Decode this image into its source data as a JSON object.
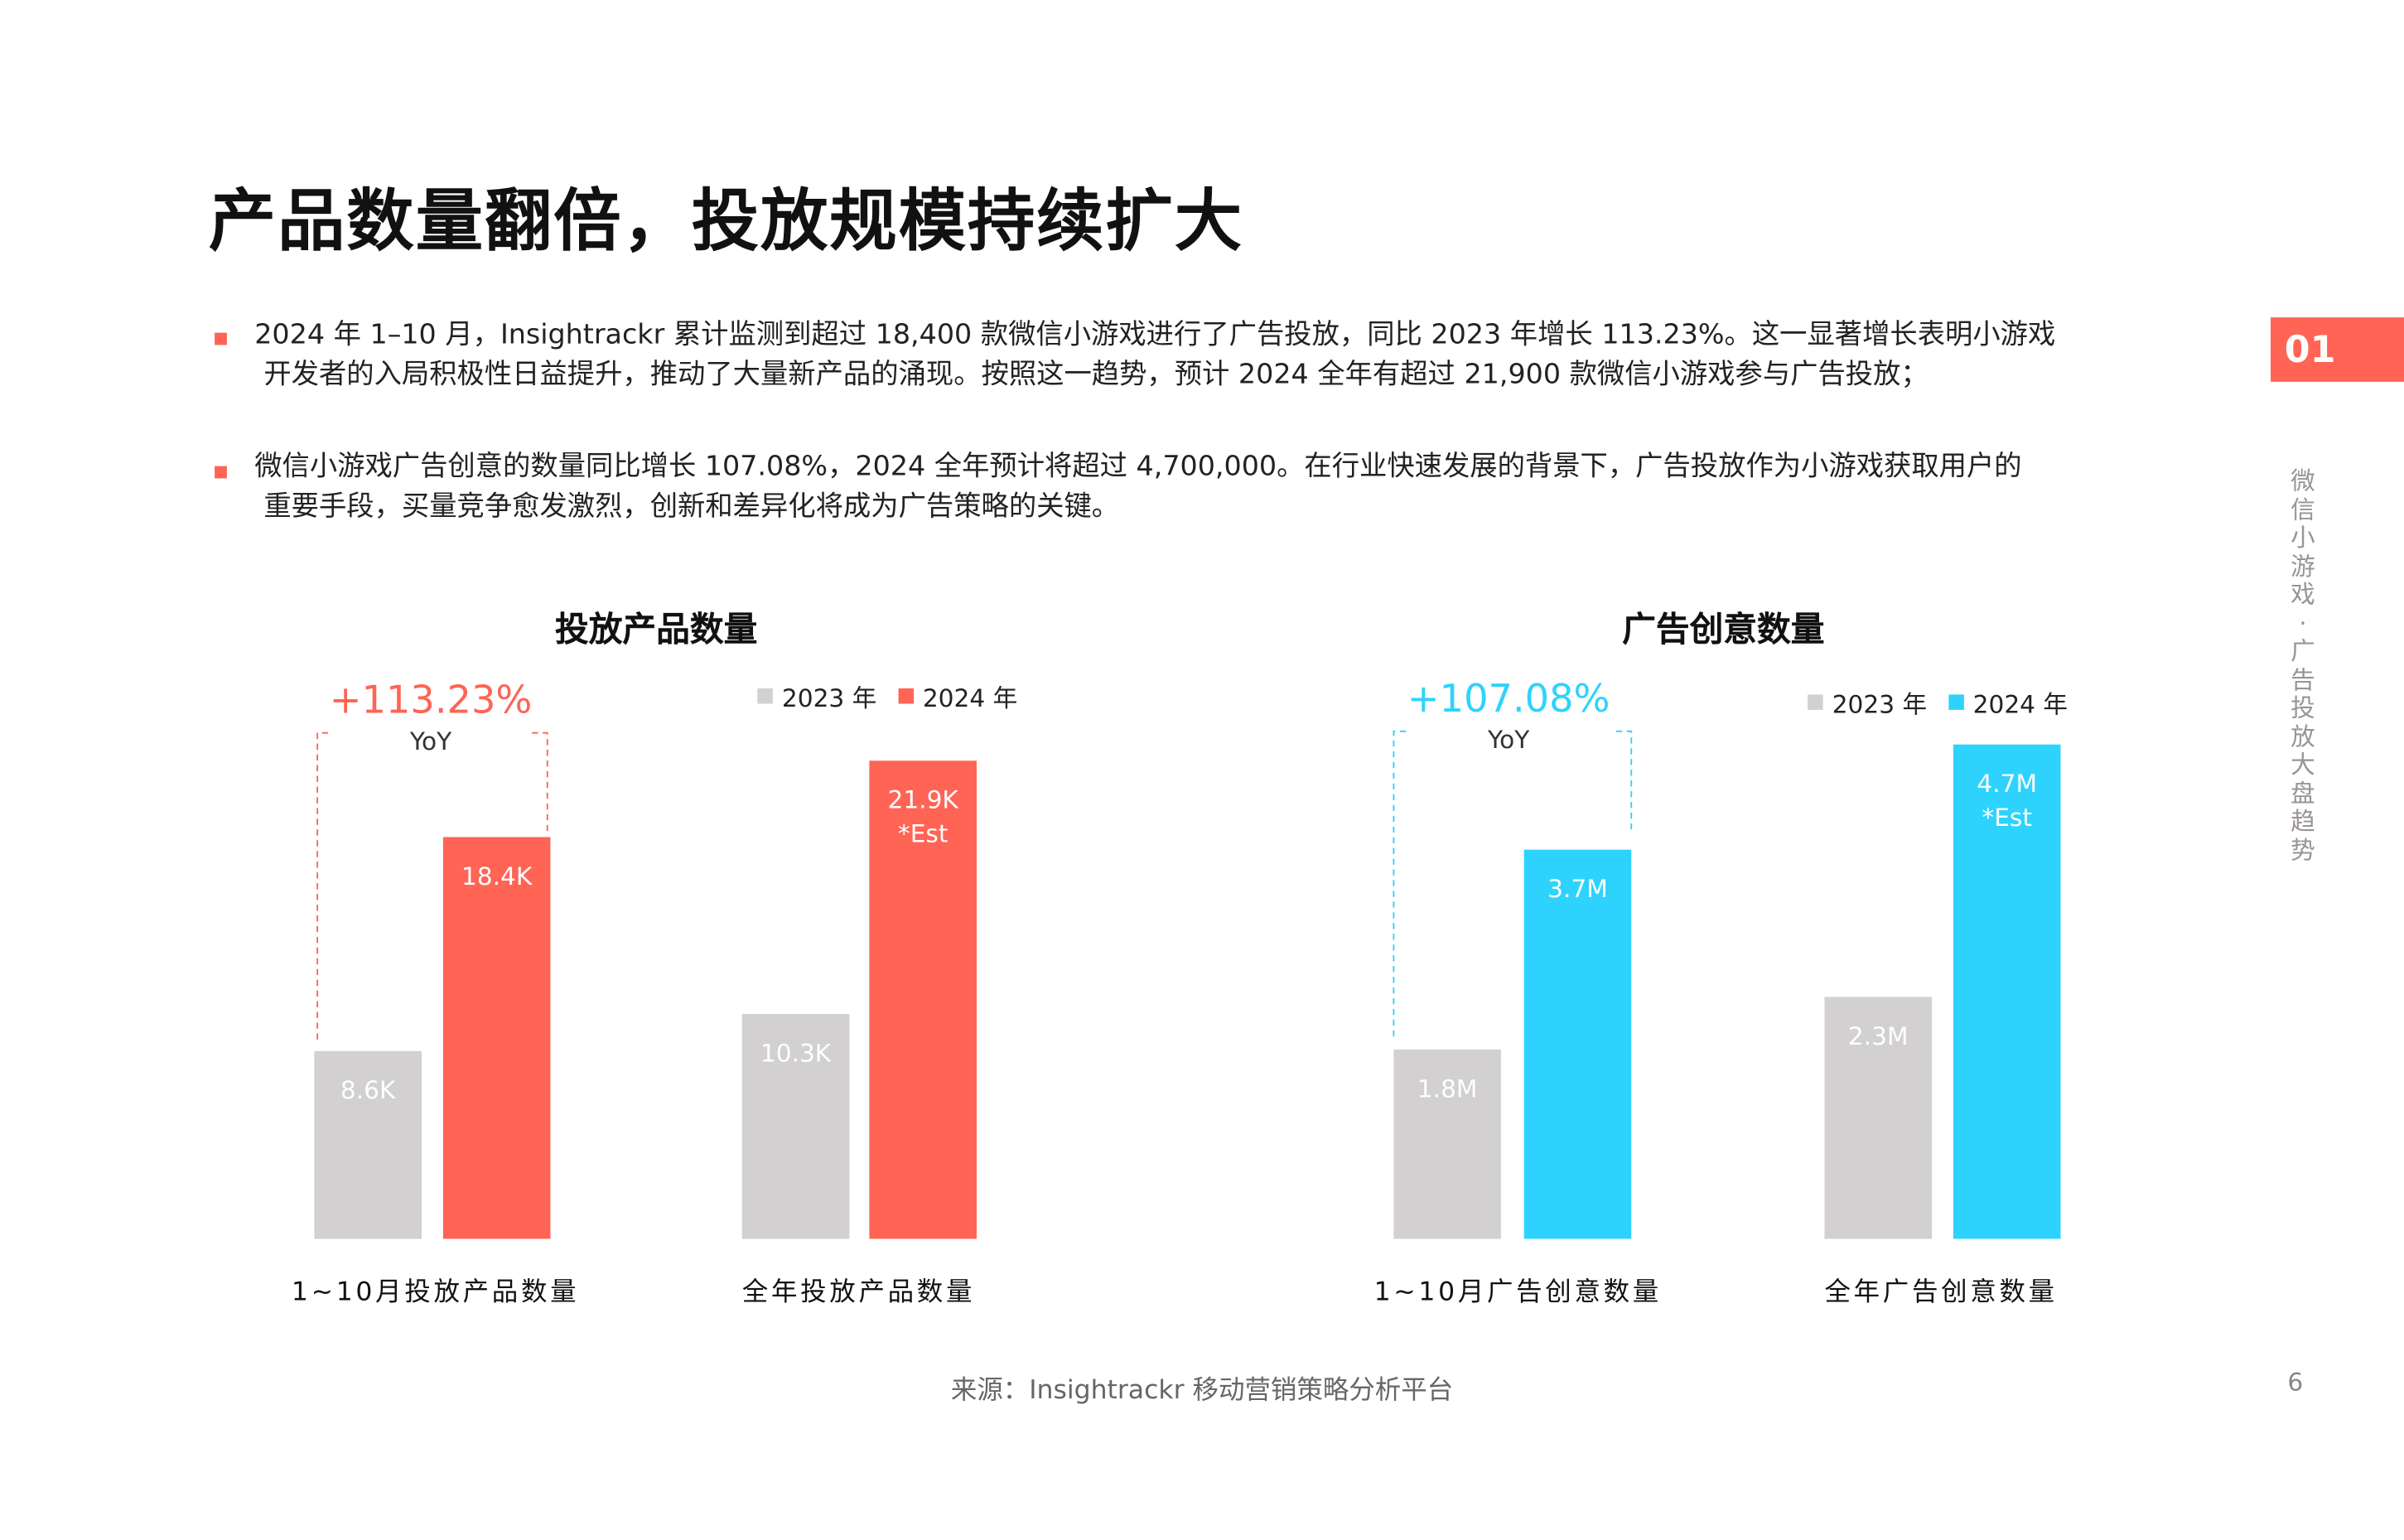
{
  "title": "产品数量翻倍，投放规模持续扩大",
  "bullets": [
    {
      "line1": "2024 年 1–10 月，Insightrackr 累计监测到超过 18,400 款微信小游戏进行了广告投放，同比 2023 年增长 113.23%。这一显著增长表明小游戏",
      "line2": "开发者的入局积极性日益提升，推动了大量新产品的涌现。按照这一趋势，预计 2024 全年有超过 21,900 款微信小游戏参与广告投放；"
    },
    {
      "line1": "微信小游戏广告创意的数量同比增长 107.08%，2024 全年预计将超过 4,700,000。在行业快速发展的背景下，广告投放作为小游戏获取用户的",
      "line2": "重要手段，买量竞争愈发激烈，创新和差异化将成为广告策略的关键。"
    }
  ],
  "section_tag": "01",
  "side_label": "微信小游戏·广告投放大盘趋势",
  "source": "来源：Insightrackr 移动营销策略分析平台",
  "page_number": "6",
  "colors": {
    "gray": "#D2D0D1",
    "red": "#FF6455",
    "cyan": "#2DD3FC"
  },
  "chart_data": [
    {
      "type": "bar",
      "title": "投放产品数量",
      "legend": [
        "2023 年",
        "2024 年"
      ],
      "legend_position": "top-right",
      "unit": "K",
      "categories": [
        "1~10月投放产品数量",
        "全年投放产品数量"
      ],
      "series": [
        {
          "name": "2023 年",
          "values": [
            8.6,
            10.3
          ],
          "labels": [
            "8.6K",
            "10.3K"
          ],
          "color": "#D2D0D1"
        },
        {
          "name": "2024 年",
          "values": [
            18.4,
            21.9
          ],
          "labels": [
            "18.4K",
            "21.9K"
          ],
          "sublabels": [
            "",
            "*Est"
          ],
          "color": "#FF6455"
        }
      ],
      "annotation": {
        "value": "+113.23%",
        "label": "YoY"
      }
    },
    {
      "type": "bar",
      "title": "广告创意数量",
      "legend": [
        "2023 年",
        "2024 年"
      ],
      "legend_position": "top-right",
      "unit": "M",
      "categories": [
        "1~10月广告创意数量",
        "全年广告创意数量"
      ],
      "series": [
        {
          "name": "2023 年",
          "values": [
            1.8,
            2.3
          ],
          "labels": [
            "1.8M",
            "2.3M"
          ],
          "color": "#D2D0D1"
        },
        {
          "name": "2024 年",
          "values": [
            3.7,
            4.7
          ],
          "labels": [
            "3.7M",
            "4.7M"
          ],
          "sublabels": [
            "",
            "*Est"
          ],
          "color": "#2DD3FC"
        }
      ],
      "annotation": {
        "value": "+107.08%",
        "label": "YoY"
      }
    }
  ]
}
